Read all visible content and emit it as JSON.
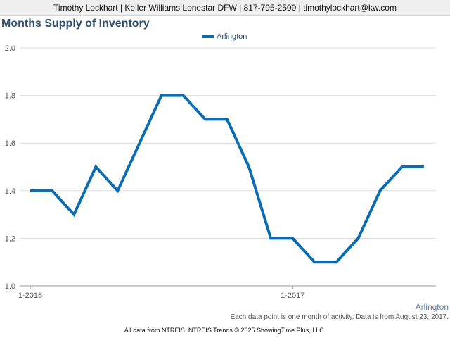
{
  "header": {
    "contact": "Timothy Lockhart | Keller Williams Lonestar DFW | 817-795-2500 | timothylockhart@kw.com"
  },
  "footnote": "Each data point is one month of activity. Data is from August 23, 2017.",
  "region_label": "Arlington",
  "footer": "All data from NTREIS. NTREIS Trends © 2025 ShowingTime Plus, LLC.",
  "colors": {
    "series": "#0a6db3",
    "title": "#2e5070",
    "grid": "#dddddd"
  },
  "chart_data": {
    "type": "line",
    "title": "Months Supply of Inventory",
    "xlabel": "",
    "ylabel": "",
    "ylim": [
      1.0,
      2.0
    ],
    "yticks": [
      "1.0",
      "1.2",
      "1.4",
      "1.6",
      "1.8",
      "2.0"
    ],
    "xticks": [
      {
        "index": 0,
        "label": "1-2016"
      },
      {
        "index": 12,
        "label": "1-2017"
      }
    ],
    "grid": true,
    "legend_position": "top",
    "x": [
      "2016-01",
      "2016-02",
      "2016-03",
      "2016-04",
      "2016-05",
      "2016-06",
      "2016-07",
      "2016-08",
      "2016-09",
      "2016-10",
      "2016-11",
      "2016-12",
      "2017-01",
      "2017-02",
      "2017-03",
      "2017-04",
      "2017-05",
      "2017-06",
      "2017-07",
      "2017-08"
    ],
    "series": [
      {
        "name": "Arlington",
        "values": [
          1.4,
          1.4,
          1.3,
          1.5,
          1.4,
          1.6,
          1.8,
          1.8,
          1.7,
          1.7,
          1.5,
          1.2,
          1.2,
          1.1,
          1.1,
          1.2,
          1.4,
          1.5,
          1.5,
          null
        ]
      }
    ]
  }
}
